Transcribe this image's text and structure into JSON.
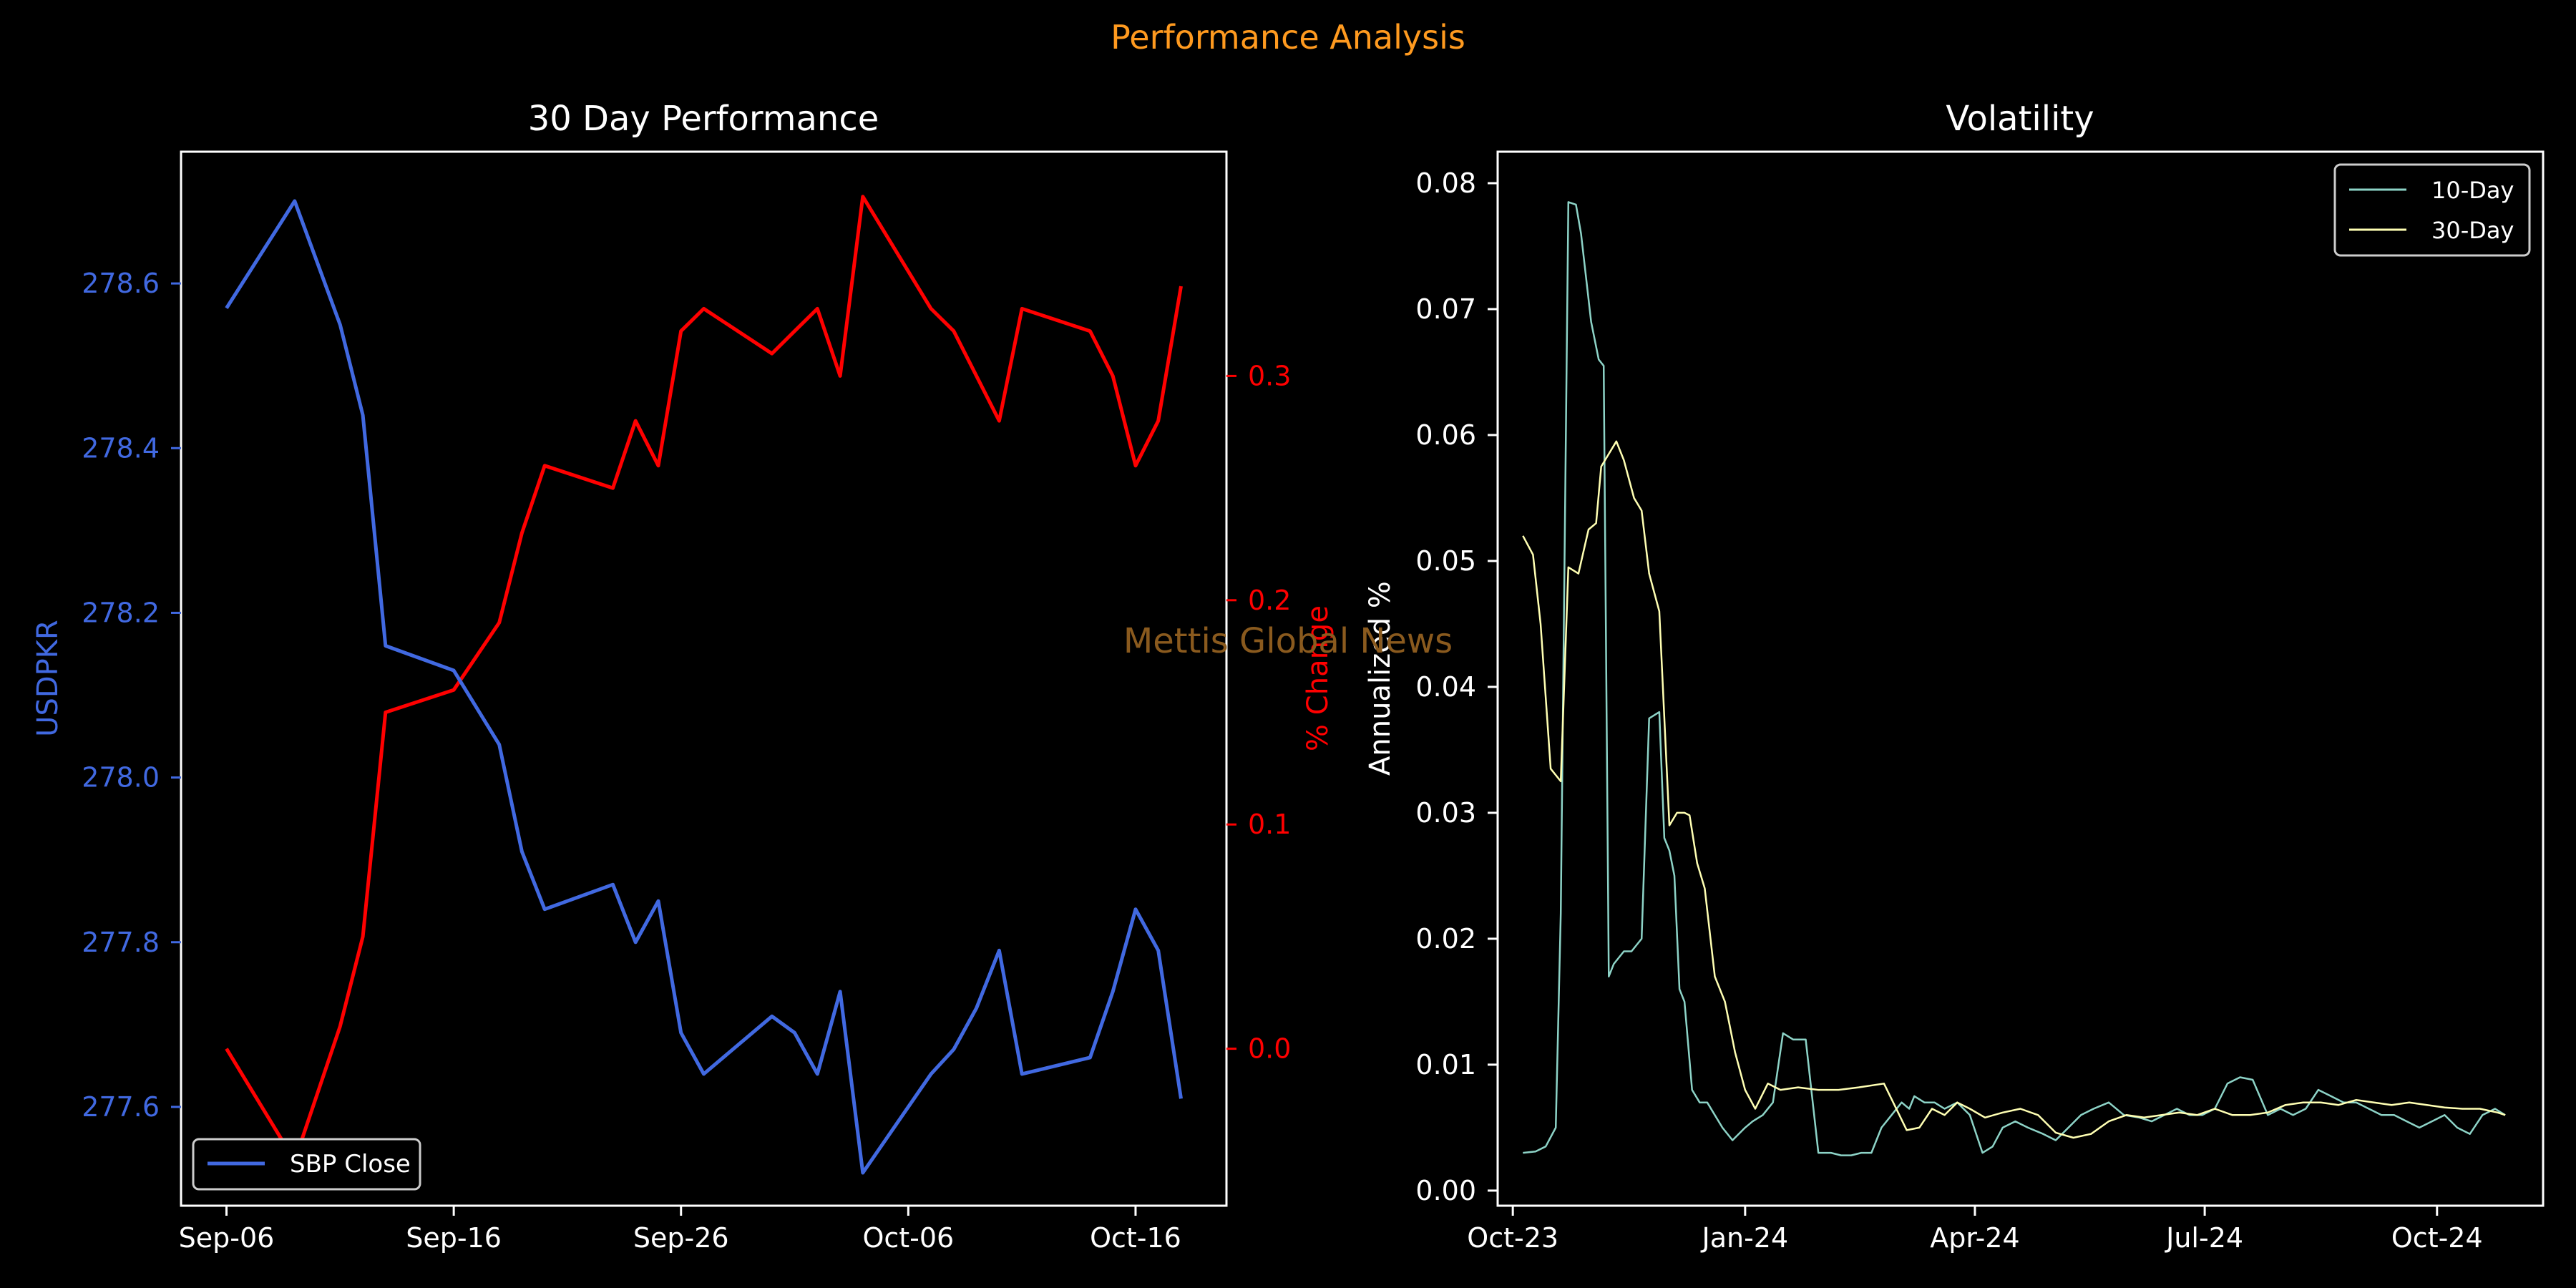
{
  "figure": {
    "suptitle": "Performance Analysis",
    "watermark": "Mettis Global News",
    "colors": {
      "background": "#000000",
      "suptitle": "#ff9a1f",
      "watermark": "#8a5a1e",
      "frame": "#ffffff",
      "usdpkr": "#4169e1",
      "pct": "#ff0000",
      "vol10": "#8dd3c7",
      "vol30": "#ffffb3"
    }
  },
  "chart_data": [
    {
      "type": "line",
      "title": "30 Day Performance",
      "ylabel": "USDPKR",
      "y2label": "% Change",
      "xticks": [
        "Sep-06",
        "Sep-16",
        "Sep-26",
        "Oct-06",
        "Oct-16"
      ],
      "yticks": [
        "277.6",
        "277.8",
        "278.0",
        "278.2",
        "278.4",
        "278.6"
      ],
      "y2ticks": [
        "0.0",
        "0.1",
        "0.2",
        "0.3"
      ],
      "ylim": [
        277.48,
        278.76
      ],
      "y2lim": [
        -0.07,
        0.4
      ],
      "xlim": [
        "2024-09-04",
        "2024-10-20"
      ],
      "legend": {
        "position": "lower-left",
        "entries": [
          "SBP Close"
        ]
      },
      "series": [
        {
          "name": "SBP Close",
          "axis": "left",
          "x": [
            "2024-09-06",
            "2024-09-09",
            "2024-09-11",
            "2024-09-12",
            "2024-09-13",
            "2024-09-16",
            "2024-09-18",
            "2024-09-19",
            "2024-09-20",
            "2024-09-23",
            "2024-09-24",
            "2024-09-25",
            "2024-09-26",
            "2024-09-27",
            "2024-09-30",
            "2024-10-01",
            "2024-10-02",
            "2024-10-03",
            "2024-10-04",
            "2024-10-07",
            "2024-10-08",
            "2024-10-09",
            "2024-10-10",
            "2024-10-11",
            "2024-10-14",
            "2024-10-15",
            "2024-10-16",
            "2024-10-17",
            "2024-10-18"
          ],
          "y": [
            278.57,
            278.7,
            278.55,
            278.44,
            278.16,
            278.13,
            278.04,
            277.91,
            277.84,
            277.87,
            277.8,
            277.85,
            277.69,
            277.64,
            277.71,
            277.69,
            277.64,
            277.74,
            277.52,
            277.64,
            277.67,
            277.72,
            277.79,
            277.64,
            277.66,
            277.74,
            277.84,
            277.79,
            277.61
          ]
        },
        {
          "axis": "right",
          "x": [
            "2024-09-06",
            "2024-09-09",
            "2024-09-11",
            "2024-09-12",
            "2024-09-13",
            "2024-09-16",
            "2024-09-18",
            "2024-09-19",
            "2024-09-20",
            "2024-09-23",
            "2024-09-24",
            "2024-09-25",
            "2024-09-26",
            "2024-09-27",
            "2024-09-30",
            "2024-10-01",
            "2024-10-02",
            "2024-10-03",
            "2024-10-04",
            "2024-10-07",
            "2024-10-08",
            "2024-10-09",
            "2024-10-10",
            "2024-10-11",
            "2024-10-14",
            "2024-10-15",
            "2024-10-16",
            "2024-10-17",
            "2024-10-18"
          ],
          "y": [
            0.0,
            -0.05,
            0.01,
            0.05,
            0.15,
            0.16,
            0.19,
            0.23,
            0.26,
            0.25,
            0.28,
            0.26,
            0.32,
            0.33,
            0.31,
            0.32,
            0.33,
            0.3,
            0.38,
            0.33,
            0.32,
            0.3,
            0.28,
            0.33,
            0.32,
            0.3,
            0.26,
            0.28,
            0.34
          ]
        }
      ]
    },
    {
      "type": "line",
      "title": "Volatility",
      "ylabel": "Annualized %",
      "xticks": [
        "Oct-23",
        "Jan-24",
        "Apr-24",
        "Jul-24",
        "Oct-24"
      ],
      "yticks": [
        "0.00",
        "0.01",
        "0.02",
        "0.03",
        "0.04",
        "0.05",
        "0.06",
        "0.07",
        "0.08"
      ],
      "ylim": [
        -0.0012,
        0.0825
      ],
      "xlim": [
        "2023-09-25",
        "2024-11-12"
      ],
      "legend": {
        "position": "top-right",
        "entries": [
          "10-Day",
          "30-Day"
        ]
      },
      "series": [
        {
          "name": "10-Day",
          "x": [
            "2023-10-05",
            "2023-10-10",
            "2023-10-14",
            "2023-10-18",
            "2023-10-20",
            "2023-10-23",
            "2023-10-26",
            "2023-10-28",
            "2023-11-01",
            "2023-11-04",
            "2023-11-06",
            "2023-11-08",
            "2023-11-10",
            "2023-11-14",
            "2023-11-17",
            "2023-11-21",
            "2023-11-24",
            "2023-11-28",
            "2023-11-30",
            "2023-12-02",
            "2023-12-04",
            "2023-12-06",
            "2023-12-08",
            "2023-12-11",
            "2023-12-14",
            "2023-12-17",
            "2023-12-20",
            "2023-12-23",
            "2023-12-27",
            "2024-01-01",
            "2024-01-04",
            "2024-01-08",
            "2024-01-12",
            "2024-01-16",
            "2024-01-20",
            "2024-01-25",
            "2024-01-30",
            "2024-02-04",
            "2024-02-08",
            "2024-02-12",
            "2024-02-16",
            "2024-02-20",
            "2024-02-24",
            "2024-02-28",
            "2024-03-03",
            "2024-03-06",
            "2024-03-08",
            "2024-03-12",
            "2024-03-16",
            "2024-03-20",
            "2024-03-25",
            "2024-03-30",
            "2024-04-04",
            "2024-04-08",
            "2024-04-12",
            "2024-04-17",
            "2024-04-22",
            "2024-04-28",
            "2024-05-03",
            "2024-05-08",
            "2024-05-13",
            "2024-05-18",
            "2024-05-24",
            "2024-05-30",
            "2024-06-05",
            "2024-06-10",
            "2024-06-15",
            "2024-06-20",
            "2024-06-25",
            "2024-06-30",
            "2024-07-05",
            "2024-07-10",
            "2024-07-15",
            "2024-07-20",
            "2024-07-26",
            "2024-07-31",
            "2024-08-05",
            "2024-08-10",
            "2024-08-15",
            "2024-08-20",
            "2024-08-25",
            "2024-08-30",
            "2024-09-04",
            "2024-09-09",
            "2024-09-14",
            "2024-09-19",
            "2024-09-24",
            "2024-09-29",
            "2024-10-04",
            "2024-10-09",
            "2024-10-14",
            "2024-10-19",
            "2024-10-24",
            "2024-10-28"
          ],
          "y": [
            0.003,
            0.0031,
            0.0035,
            0.005,
            0.022,
            0.0785,
            0.0783,
            0.076,
            0.069,
            0.066,
            0.0655,
            0.017,
            0.018,
            0.019,
            0.019,
            0.02,
            0.0375,
            0.038,
            0.028,
            0.027,
            0.025,
            0.016,
            0.015,
            0.008,
            0.007,
            0.007,
            0.006,
            0.005,
            0.004,
            0.005,
            0.0055,
            0.006,
            0.007,
            0.0125,
            0.012,
            0.012,
            0.003,
            0.003,
            0.0028,
            0.0028,
            0.003,
            0.003,
            0.005,
            0.006,
            0.007,
            0.0065,
            0.0075,
            0.007,
            0.007,
            0.0065,
            0.007,
            0.006,
            0.003,
            0.0035,
            0.005,
            0.0055,
            0.005,
            0.0045,
            0.004,
            0.005,
            0.006,
            0.0065,
            0.007,
            0.006,
            0.0058,
            0.0055,
            0.006,
            0.0065,
            0.006,
            0.006,
            0.0065,
            0.0085,
            0.009,
            0.0088,
            0.006,
            0.0065,
            0.006,
            0.0065,
            0.008,
            0.0075,
            0.007,
            0.007,
            0.0065,
            0.006,
            0.006,
            0.0055,
            0.005,
            0.0055,
            0.006,
            0.005,
            0.0045,
            0.006,
            0.0065,
            0.006
          ]
        },
        {
          "name": "30-Day",
          "x": [
            "2023-10-05",
            "2023-10-09",
            "2023-10-12",
            "2023-10-16",
            "2023-10-20",
            "2023-10-23",
            "2023-10-27",
            "2023-10-31",
            "2023-11-03",
            "2023-11-05",
            "2023-11-08",
            "2023-11-11",
            "2023-11-14",
            "2023-11-18",
            "2023-11-21",
            "2023-11-24",
            "2023-11-28",
            "2023-12-02",
            "2023-12-05",
            "2023-12-08",
            "2023-12-10",
            "2023-12-13",
            "2023-12-16",
            "2023-12-20",
            "2023-12-24",
            "2023-12-28",
            "2024-01-01",
            "2024-01-05",
            "2024-01-10",
            "2024-01-15",
            "2024-01-22",
            "2024-01-30",
            "2024-02-07",
            "2024-02-15",
            "2024-02-25",
            "2024-03-05",
            "2024-03-10",
            "2024-03-15",
            "2024-03-20",
            "2024-03-25",
            "2024-03-30",
            "2024-04-05",
            "2024-04-12",
            "2024-04-19",
            "2024-04-26",
            "2024-05-03",
            "2024-05-10",
            "2024-05-17",
            "2024-05-24",
            "2024-05-31",
            "2024-06-07",
            "2024-06-14",
            "2024-06-21",
            "2024-06-28",
            "2024-07-05",
            "2024-07-12",
            "2024-07-19",
            "2024-07-26",
            "2024-08-02",
            "2024-08-09",
            "2024-08-16",
            "2024-08-23",
            "2024-08-30",
            "2024-09-06",
            "2024-09-13",
            "2024-09-20",
            "2024-09-27",
            "2024-10-04",
            "2024-10-11",
            "2024-10-18",
            "2024-10-25",
            "2024-10-28"
          ],
          "y": [
            0.052,
            0.0505,
            0.045,
            0.0335,
            0.0325,
            0.0495,
            0.049,
            0.0525,
            0.053,
            0.0575,
            0.0585,
            0.0595,
            0.058,
            0.055,
            0.054,
            0.049,
            0.046,
            0.029,
            0.03,
            0.03,
            0.0298,
            0.026,
            0.024,
            0.017,
            0.015,
            0.011,
            0.008,
            0.0065,
            0.0085,
            0.008,
            0.0082,
            0.008,
            0.008,
            0.0082,
            0.0085,
            0.0048,
            0.005,
            0.0065,
            0.006,
            0.007,
            0.0065,
            0.0058,
            0.0062,
            0.0065,
            0.006,
            0.0046,
            0.0042,
            0.0045,
            0.0055,
            0.006,
            0.0058,
            0.006,
            0.0062,
            0.006,
            0.0065,
            0.006,
            0.006,
            0.0062,
            0.0068,
            0.007,
            0.007,
            0.0068,
            0.0072,
            0.007,
            0.0068,
            0.007,
            0.0068,
            0.0066,
            0.0065,
            0.0065,
            0.0062,
            0.006
          ]
        }
      ]
    }
  ]
}
